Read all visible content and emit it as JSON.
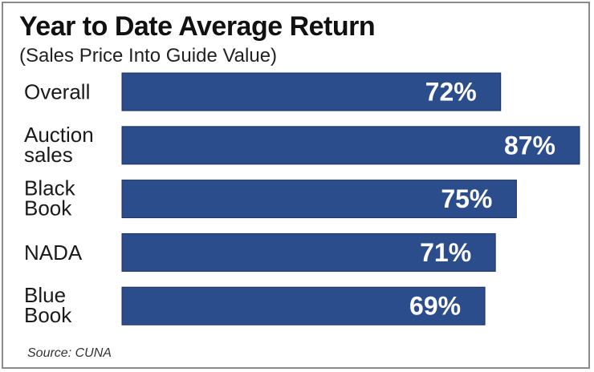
{
  "chart_data": {
    "type": "bar",
    "orientation": "horizontal",
    "title": "Year to Date Average Return",
    "subtitle": "(Sales Price Into Guide Value)",
    "categories": [
      [
        "Overall"
      ],
      [
        "Auction",
        "sales"
      ],
      [
        "Black",
        "Book"
      ],
      [
        "NADA"
      ],
      [
        "Blue",
        "Book"
      ]
    ],
    "values": [
      72,
      87,
      75,
      71,
      69
    ],
    "value_labels": [
      "72%",
      "87%",
      "75%",
      "71%",
      "69%"
    ],
    "xlim": [
      0,
      87
    ],
    "grid": false,
    "legend": "none",
    "bar_color": "#2c4d8c",
    "source": "Source: CUNA"
  }
}
